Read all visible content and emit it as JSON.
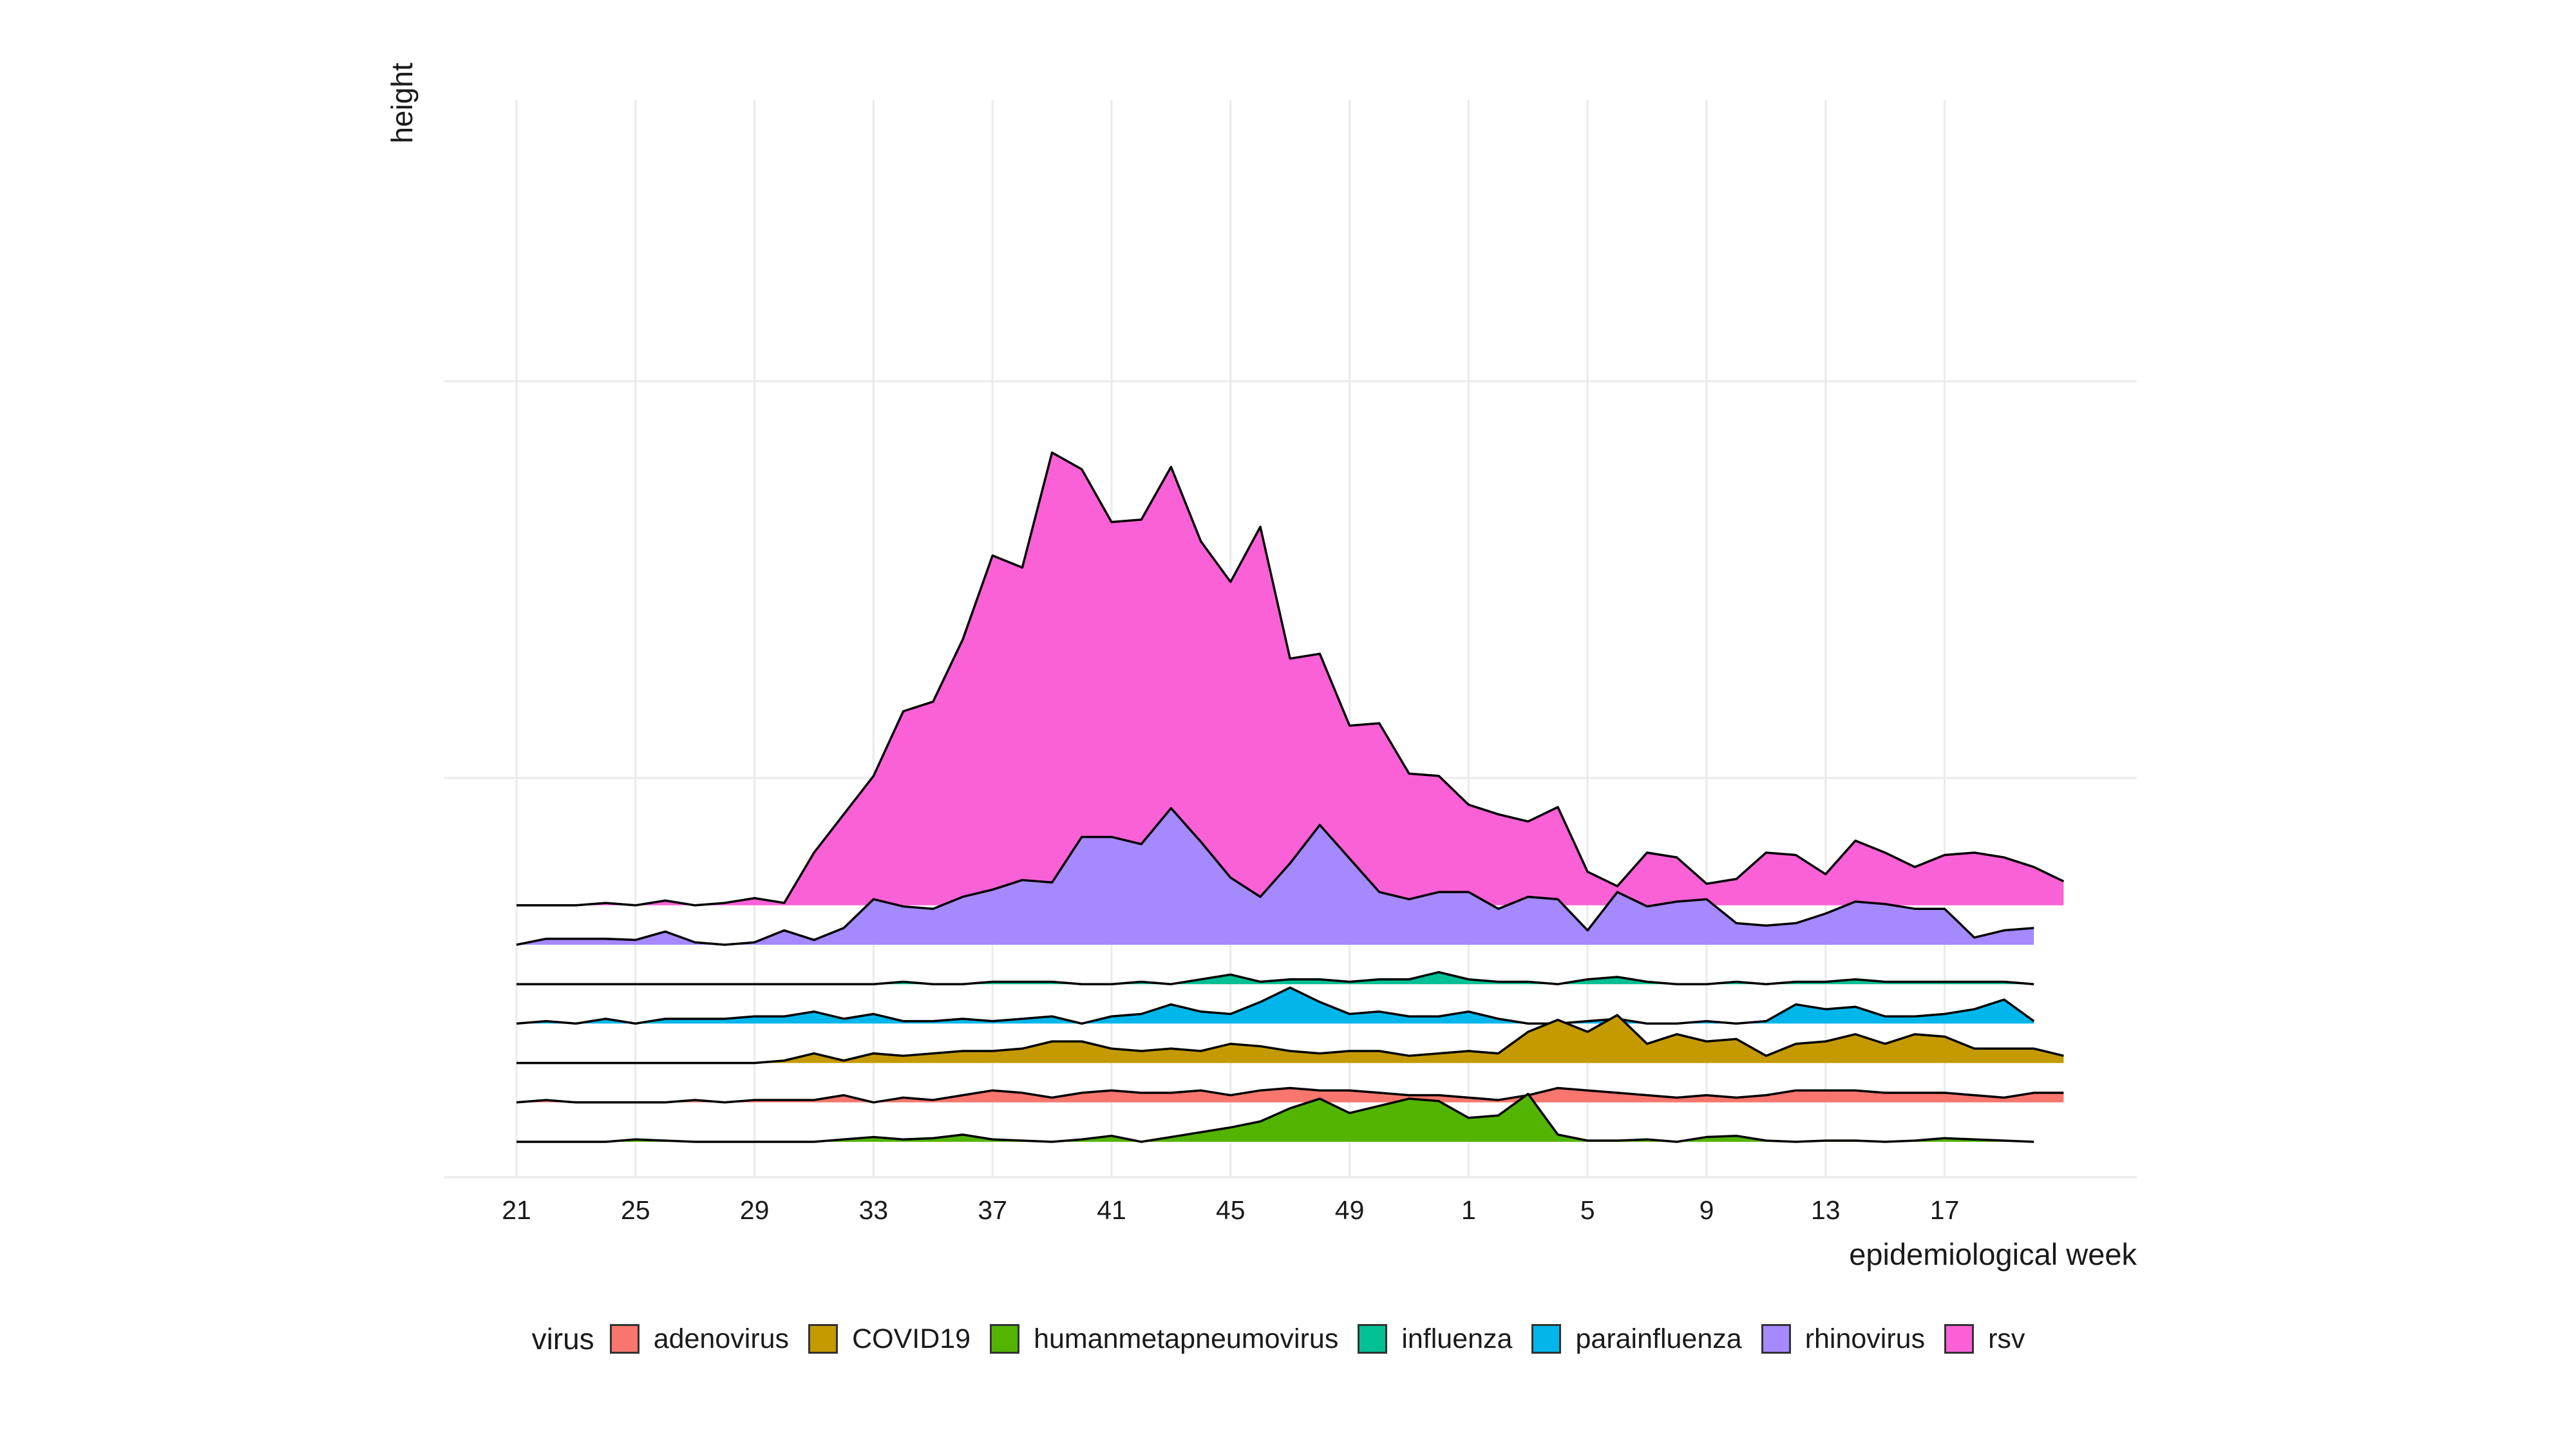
{
  "chart_data": {
    "type": "area",
    "title": "",
    "xlabel": "epidemiological week",
    "ylabel": "height",
    "legend_title": "virus",
    "legend_position": "bottom",
    "grid": true,
    "x_tick_labels": [
      "21",
      "25",
      "29",
      "33",
      "37",
      "41",
      "45",
      "49",
      "1",
      "5",
      "9",
      "13",
      "17"
    ],
    "x_tick_index": [
      0,
      4,
      8,
      12,
      16,
      20,
      24,
      28,
      32,
      36,
      40,
      44,
      48
    ],
    "x_range_index": [
      -1,
      52
    ],
    "stacking": "ridgeline",
    "colors": {
      "adenovirus": "#F8766D",
      "COVID19": "#C49A00",
      "humanmetapneumovirus": "#53B400",
      "influenza": "#00C094",
      "parainfluenza": "#00B6EB",
      "rhinovirus": "#A58AFF",
      "rsv": "#FB61D7"
    },
    "series": [
      {
        "name": "humanmetapneumovirus",
        "baseline": 0,
        "values": [
          0,
          0,
          0,
          0,
          0.1,
          0.05,
          0,
          0,
          0,
          0,
          0,
          0.1,
          0.2,
          0.1,
          0.15,
          0.3,
          0.1,
          0.05,
          0,
          0.1,
          0.25,
          0,
          0.2,
          0.4,
          0.6,
          0.85,
          1.4,
          1.8,
          1.2,
          1.5,
          1.8,
          1.7,
          1.0,
          1.1,
          2.0,
          0.3,
          0.05,
          0.05,
          0.1,
          0,
          0.2,
          0.25,
          0.05,
          0,
          0.05,
          0.05,
          0,
          0.05,
          0.15,
          0.1,
          0.05,
          0
        ]
      },
      {
        "name": "adenovirus",
        "baseline": 1,
        "values": [
          0,
          0.1,
          0,
          0,
          0,
          0,
          0.1,
          0,
          0.1,
          0.1,
          0.1,
          0.3,
          0,
          0.2,
          0.1,
          0.3,
          0.5,
          0.4,
          0.2,
          0.4,
          0.5,
          0.4,
          0.4,
          0.5,
          0.3,
          0.5,
          0.6,
          0.5,
          0.5,
          0.4,
          0.3,
          0.3,
          0.2,
          0.1,
          0.3,
          0.6,
          0.5,
          0.4,
          0.3,
          0.2,
          0.3,
          0.2,
          0.3,
          0.5,
          0.5,
          0.5,
          0.4,
          0.4,
          0.4,
          0.3,
          0.2,
          0.4,
          0.4
        ]
      },
      {
        "name": "COVID19",
        "baseline": 2,
        "values": [
          0,
          0,
          0,
          0,
          0,
          0,
          0,
          0,
          0,
          0.1,
          0.4,
          0.1,
          0.4,
          0.3,
          0.4,
          0.5,
          0.5,
          0.6,
          0.9,
          0.9,
          0.6,
          0.5,
          0.6,
          0.5,
          0.8,
          0.7,
          0.5,
          0.4,
          0.5,
          0.5,
          0.3,
          0.4,
          0.5,
          0.4,
          1.3,
          1.8,
          1.3,
          2.0,
          0.8,
          1.2,
          0.9,
          1.0,
          0.3,
          0.8,
          0.9,
          1.2,
          0.8,
          1.2,
          1.1,
          0.6,
          0.6,
          0.6,
          0.3
        ]
      },
      {
        "name": "parainfluenza",
        "baseline": 3,
        "values": [
          0,
          0.1,
          0,
          0.2,
          0,
          0.2,
          0.2,
          0.2,
          0.3,
          0.3,
          0.5,
          0.2,
          0.4,
          0.1,
          0.1,
          0.2,
          0.1,
          0.2,
          0.3,
          0,
          0.3,
          0.4,
          0.8,
          0.5,
          0.4,
          0.9,
          1.5,
          0.9,
          0.4,
          0.5,
          0.3,
          0.3,
          0.5,
          0.2,
          0,
          0,
          0.1,
          0.2,
          0,
          0,
          0.1,
          0,
          0.1,
          0.8,
          0.6,
          0.7,
          0.3,
          0.3,
          0.4,
          0.6,
          1.0,
          0.1
        ]
      },
      {
        "name": "influenza",
        "baseline": 4,
        "values": [
          0,
          0,
          0,
          0,
          0,
          0,
          0,
          0,
          0,
          0,
          0,
          0,
          0,
          0.1,
          0,
          0,
          0.1,
          0.1,
          0.1,
          0,
          0,
          0.1,
          0,
          0.2,
          0.4,
          0.1,
          0.2,
          0.2,
          0.1,
          0.2,
          0.2,
          0.5,
          0.2,
          0.1,
          0.1,
          0,
          0.2,
          0.3,
          0.1,
          0,
          0,
          0.1,
          0,
          0.1,
          0.1,
          0.2,
          0.1,
          0.1,
          0.1,
          0.1,
          0.1,
          0
        ]
      },
      {
        "name": "rhinovirus",
        "baseline": 5,
        "values": [
          0,
          0.25,
          0.25,
          0.25,
          0.2,
          0.55,
          0.1,
          0,
          0.1,
          0.6,
          0.2,
          0.7,
          1.9,
          1.6,
          1.5,
          2.0,
          2.3,
          2.7,
          2.6,
          4.5,
          4.5,
          4.2,
          5.7,
          4.3,
          2.8,
          2.0,
          3.4,
          5.0,
          3.6,
          2.2,
          1.9,
          2.2,
          2.2,
          1.5,
          2.0,
          1.9,
          0.6,
          2.2,
          1.6,
          1.8,
          1.9,
          0.9,
          0.8,
          0.9,
          1.3,
          1.8,
          1.7,
          1.5,
          1.5,
          0.3,
          0.6,
          0.7
        ]
      },
      {
        "name": "rsv",
        "baseline": 6,
        "values": [
          0,
          0,
          0,
          0.1,
          0,
          0.2,
          0,
          0.1,
          0.3,
          0.1,
          2.2,
          3.8,
          5.4,
          8.1,
          8.5,
          11.1,
          14.6,
          14.1,
          18.9,
          18.2,
          16.0,
          16.1,
          18.3,
          15.2,
          13.5,
          15.8,
          10.3,
          10.5,
          7.5,
          7.6,
          5.5,
          5.4,
          4.2,
          3.8,
          3.5,
          4.1,
          1.4,
          0.8,
          2.2,
          2.0,
          0.9,
          1.1,
          2.2,
          2.1,
          1.3,
          2.7,
          2.2,
          1.6,
          2.1,
          2.2,
          2.0,
          1.6,
          1.0
        ]
      }
    ]
  }
}
